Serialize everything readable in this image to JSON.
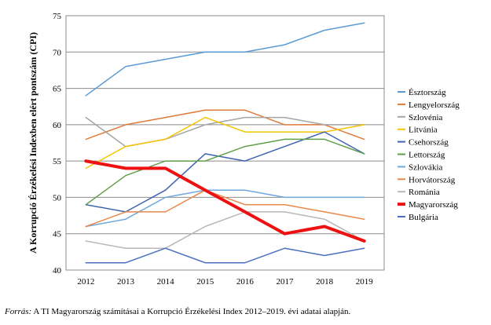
{
  "chart_data": {
    "type": "line",
    "ylabel": "A Korrupció Érzékelési Indexben elért pontszám (CPI)",
    "xlabel": "",
    "x": [
      "2012",
      "2013",
      "2014",
      "2015",
      "2016",
      "2017",
      "2018",
      "2019"
    ],
    "ylim": [
      40,
      75
    ],
    "yticks": [
      40,
      45,
      50,
      55,
      60,
      65,
      70,
      75
    ],
    "grid": "horizontal",
    "legend_position": "right",
    "series": [
      {
        "name": "Észtország",
        "color": "#5b9bd5",
        "width": 1.5,
        "values": [
          64,
          68,
          69,
          70,
          70,
          71,
          73,
          74
        ]
      },
      {
        "name": "Lengyelország",
        "color": "#e07b39",
        "width": 1.5,
        "values": [
          58,
          60,
          61,
          62,
          62,
          60,
          60,
          58
        ]
      },
      {
        "name": "Szlovénia",
        "color": "#a5a5a5",
        "width": 1.5,
        "values": [
          61,
          57,
          58,
          60,
          61,
          61,
          60,
          60
        ]
      },
      {
        "name": "Litvánia",
        "color": "#f5c400",
        "width": 1.5,
        "values": [
          54,
          57,
          58,
          61,
          59,
          59,
          59,
          60
        ]
      },
      {
        "name": "Csehország",
        "color": "#3e64b4",
        "width": 1.5,
        "values": [
          49,
          48,
          51,
          56,
          55,
          57,
          59,
          56
        ]
      },
      {
        "name": "Lettország",
        "color": "#5fa048",
        "width": 1.5,
        "values": [
          49,
          53,
          55,
          55,
          57,
          58,
          58,
          56
        ]
      },
      {
        "name": "Szlovákia",
        "color": "#6fa8dc",
        "width": 1.5,
        "values": [
          46,
          47,
          50,
          51,
          51,
          50,
          50,
          50
        ]
      },
      {
        "name": "Horvátország",
        "color": "#e8884a",
        "width": 1.5,
        "values": [
          46,
          48,
          48,
          51,
          49,
          49,
          48,
          47
        ]
      },
      {
        "name": "Románia",
        "color": "#b8b8b8",
        "width": 1.5,
        "values": [
          44,
          43,
          43,
          46,
          48,
          48,
          47,
          44
        ]
      },
      {
        "name": "Magyarország",
        "color": "#ee1111",
        "width": 4,
        "values": [
          55,
          54,
          54,
          51,
          48,
          45,
          46,
          44
        ]
      },
      {
        "name": "Bulgária",
        "color": "#4a6fc0",
        "width": 1.5,
        "values": [
          41,
          41,
          43,
          41,
          41,
          43,
          42,
          43
        ]
      }
    ]
  },
  "caption": {
    "source_label": "Forrás:",
    "text": " A TI Magyarország számításai a Korrupció Érzékelési Index 2012–2019. évi adatai alapján."
  }
}
